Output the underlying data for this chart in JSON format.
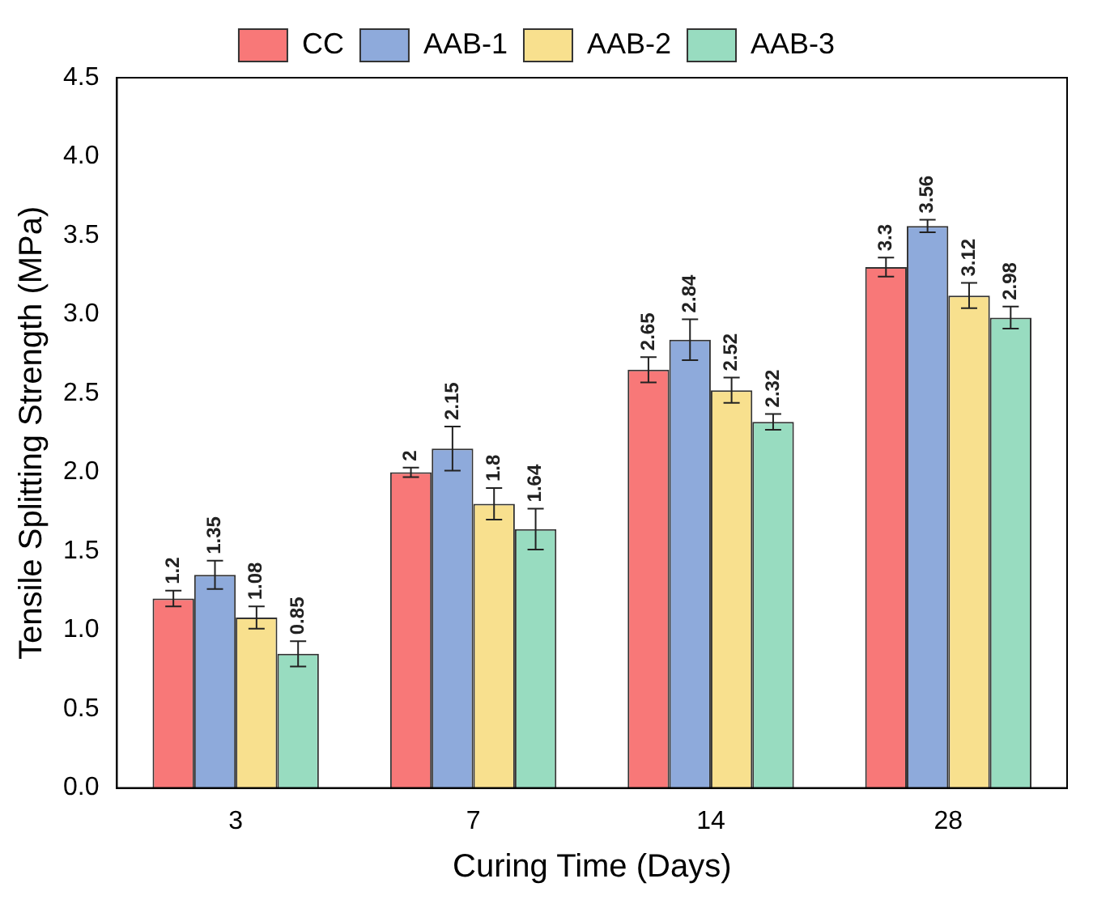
{
  "chart_data": {
    "type": "bar",
    "xlabel": "Curing Time (Days)",
    "ylabel": "Tensile Splitting Strength (MPa)",
    "categories": [
      "3",
      "7",
      "14",
      "28"
    ],
    "series": [
      {
        "name": "CC",
        "color": "#f87878",
        "values": [
          1.2,
          2,
          2.65,
          3.3
        ],
        "errors": [
          0.05,
          0.03,
          0.08,
          0.06
        ]
      },
      {
        "name": "AAB-1",
        "color": "#8eaadb",
        "values": [
          1.35,
          2.15,
          2.84,
          3.56
        ],
        "errors": [
          0.09,
          0.14,
          0.13,
          0.04
        ]
      },
      {
        "name": "AAB-2",
        "color": "#f8e08e",
        "values": [
          1.08,
          1.8,
          2.52,
          3.12
        ],
        "errors": [
          0.07,
          0.1,
          0.08,
          0.08
        ]
      },
      {
        "name": "AAB-3",
        "color": "#98dcc0",
        "values": [
          0.85,
          1.64,
          2.32,
          2.98
        ],
        "errors": [
          0.08,
          0.13,
          0.05,
          0.07
        ]
      }
    ],
    "ylim": [
      0,
      4.5
    ],
    "yticks": [
      {
        "value": 0,
        "label": "0.0"
      },
      0.5,
      {
        "value": 1,
        "label": "1.0"
      },
      1.5,
      {
        "value": 2,
        "label": "2.0"
      },
      2.5,
      {
        "value": 3,
        "label": "3.0"
      },
      3.5,
      {
        "value": 4,
        "label": "4.0"
      },
      4.5
    ],
    "grid": false,
    "legend": "top",
    "data_labels": true
  }
}
